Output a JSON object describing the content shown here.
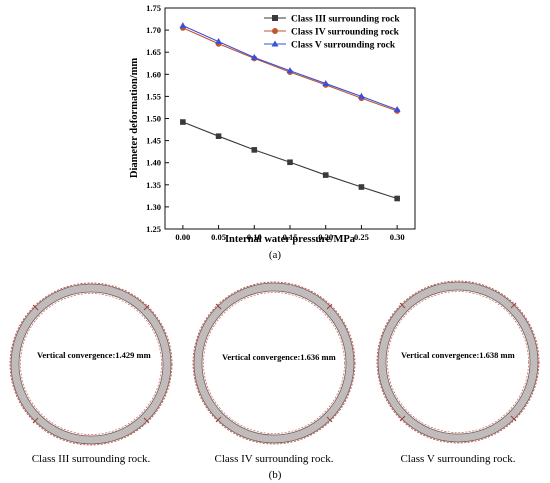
{
  "chart_data": {
    "type": "line",
    "title": "",
    "xlabel": "Internal water pressure/MPa",
    "ylabel": "Diameter deformation/mm",
    "x": [
      0.0,
      0.05,
      0.1,
      0.15,
      0.2,
      0.25,
      0.3
    ],
    "x_tick_labels": [
      "0.00",
      "0.05",
      "0.10",
      "0.15",
      "0.20",
      "0.25",
      "0.30"
    ],
    "xlim": [
      -0.025,
      0.325
    ],
    "ylim": [
      1.25,
      1.75
    ],
    "y_ticks": [
      1.25,
      1.3,
      1.35,
      1.4,
      1.45,
      1.5,
      1.55,
      1.6,
      1.65,
      1.7,
      1.75
    ],
    "y_tick_labels": [
      "1.25",
      "1.30",
      "1.35",
      "1.40",
      "1.45",
      "1.50",
      "1.55",
      "1.60",
      "1.65",
      "1.70",
      "1.75"
    ],
    "grid": false,
    "legend_position": "top-right",
    "series": [
      {
        "name": "Class III surrounding rock",
        "color": "#3a3a3a",
        "marker": "square",
        "values": [
          1.492,
          1.46,
          1.429,
          1.401,
          1.372,
          1.345,
          1.319
        ]
      },
      {
        "name": "Class IV surrounding rock",
        "color": "#c0552f",
        "marker": "circle",
        "values": [
          1.705,
          1.669,
          1.636,
          1.605,
          1.576,
          1.546,
          1.517
        ]
      },
      {
        "name": "Class V surrounding rock",
        "color": "#3b4fd8",
        "marker": "triangle",
        "values": [
          1.71,
          1.674,
          1.638,
          1.608,
          1.579,
          1.55,
          1.52
        ]
      }
    ]
  },
  "panel_a_label": "(a)",
  "panel_b_label": "(b)",
  "rings": [
    {
      "convergence_text": "Vertical convergence:1.429 mm",
      "caption": "Class III surrounding rock."
    },
    {
      "convergence_text": "Vertical convergence:1.636 mm",
      "caption": "Class IV surrounding rock."
    },
    {
      "convergence_text": "Vertical convergence:1.638 mm",
      "caption": "Class V surrounding rock."
    }
  ],
  "colors": {
    "ring_fill": "#c4bfbe",
    "ring_edge": "#6b6060",
    "ring_outline_dash": "#d04030",
    "ring_segment": "#a03a34"
  }
}
